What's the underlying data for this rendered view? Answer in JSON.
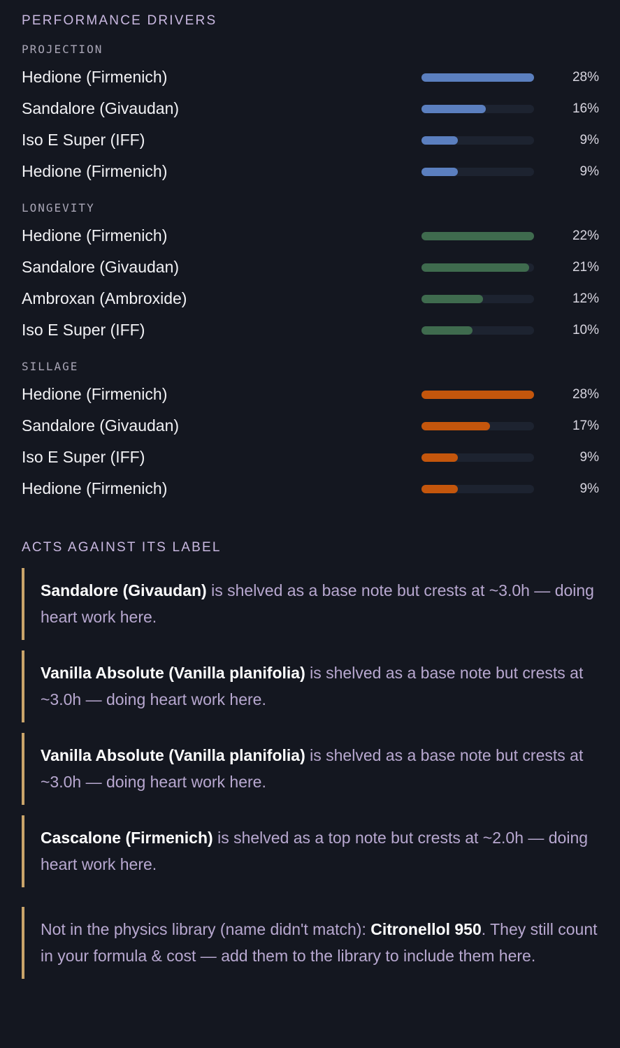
{
  "title": "PERFORMANCE DRIVERS",
  "sections": [
    {
      "label": "PROJECTION",
      "color": "#5b7fbf",
      "rows": [
        {
          "name": "Hedione (Firmenich)",
          "value": 28,
          "value_label": "28%"
        },
        {
          "name": "Sandalore (Givaudan)",
          "value": 16,
          "value_label": "16%"
        },
        {
          "name": "Iso E Super (IFF)",
          "value": 9,
          "value_label": "9%"
        },
        {
          "name": "Hedione (Firmenich)",
          "value": 9,
          "value_label": "9%"
        }
      ]
    },
    {
      "label": "LONGEVITY",
      "color": "#3f6b4e",
      "rows": [
        {
          "name": "Hedione (Firmenich)",
          "value": 22,
          "value_label": "22%"
        },
        {
          "name": "Sandalore (Givaudan)",
          "value": 21,
          "value_label": "21%"
        },
        {
          "name": "Ambroxan (Ambroxide)",
          "value": 12,
          "value_label": "12%"
        },
        {
          "name": "Iso E Super (IFF)",
          "value": 10,
          "value_label": "10%"
        }
      ]
    },
    {
      "label": "SILLAGE",
      "color": "#c4560c",
      "rows": [
        {
          "name": "Hedione (Firmenich)",
          "value": 28,
          "value_label": "28%"
        },
        {
          "name": "Sandalore (Givaudan)",
          "value": 17,
          "value_label": "17%"
        },
        {
          "name": "Iso E Super (IFF)",
          "value": 9,
          "value_label": "9%"
        },
        {
          "name": "Hedione (Firmenich)",
          "value": 9,
          "value_label": "9%"
        }
      ]
    }
  ],
  "notes_heading": "ACTS AGAINST ITS LABEL",
  "notes": [
    {
      "strong": "Sandalore (Givaudan)",
      "text": "is shelved as a base note but crests at ~3.0h — doing heart work here."
    },
    {
      "strong": "Vanilla Absolute (Vanilla planifolia)",
      "text": "is shelved as a base note but crests at ~3.0h — doing heart work here."
    },
    {
      "strong": "Vanilla Absolute (Vanilla planifolia)",
      "text": "is shelved as a base note but crests at ~3.0h — doing heart work here."
    },
    {
      "strong": "Cascalone (Firmenich)",
      "text": "is shelved as a top note but crests at ~2.0h — doing heart work here."
    }
  ],
  "footnote": {
    "before": "Not in the physics library (name didn't match):",
    "strong": "Citronellol 950",
    "after": ". They still count in your formula & cost — add them to the library to include them here."
  }
}
